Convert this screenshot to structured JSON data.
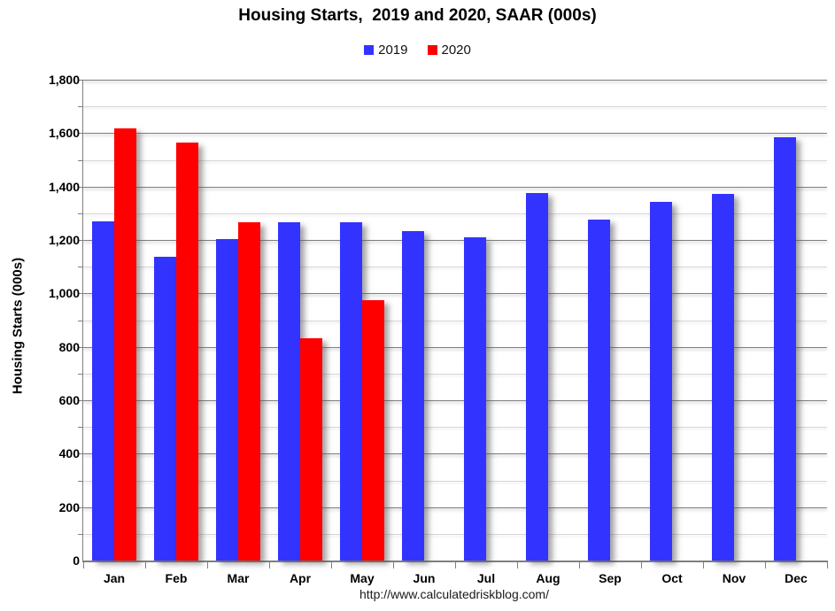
{
  "chart_data": {
    "type": "bar",
    "title": "Housing Starts,  2019 and 2020, SAAR (000s)",
    "xlabel": "",
    "ylabel": "Housing Starts (000s)",
    "categories": [
      "Jan",
      "Feb",
      "Mar",
      "Apr",
      "May",
      "Jun",
      "Jul",
      "Aug",
      "Sep",
      "Oct",
      "Nov",
      "Dec"
    ],
    "series": [
      {
        "name": "2019",
        "color": "#3333ff",
        "values": [
          1270,
          1137,
          1203,
          1266,
          1266,
          1233,
          1211,
          1377,
          1275,
          1342,
          1371,
          1585
        ]
      },
      {
        "name": "2020",
        "color": "#ff0000",
        "values": [
          1617,
          1565,
          1267,
          833,
          975,
          null,
          null,
          null,
          null,
          null,
          null,
          null
        ]
      }
    ],
    "ylim": [
      0,
      1800
    ],
    "y_major_step": 200,
    "y_minor_step": 100,
    "grid": true,
    "legend_position": "top"
  },
  "footer": {
    "url": "http://www.calculatedriskblog.com/"
  },
  "colors": {
    "axis": "#7f7f7f",
    "major_gridline": "#808080",
    "minor_gridline": "#d6d6d6",
    "background": "#ffffff",
    "text": "#000000"
  }
}
